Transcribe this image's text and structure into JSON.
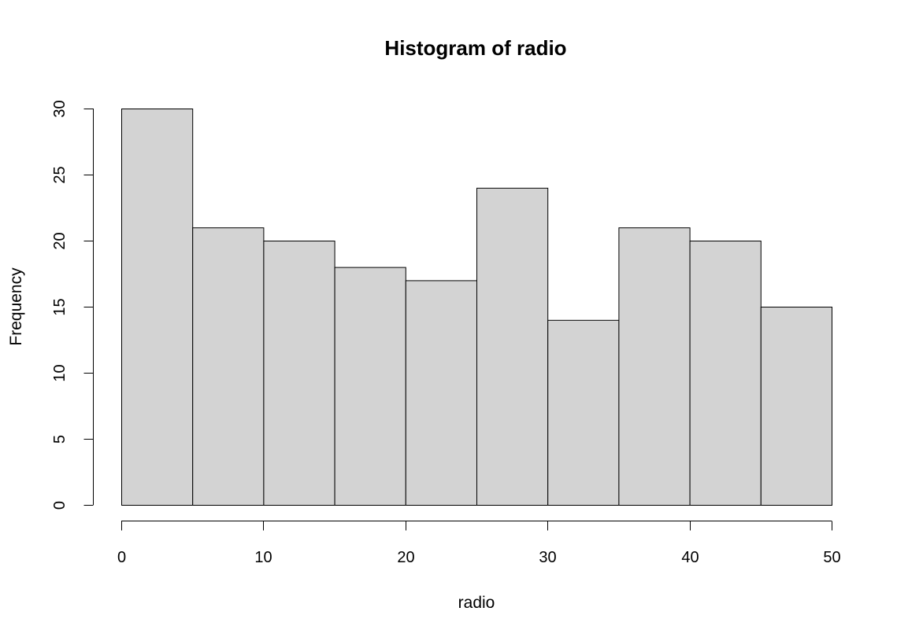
{
  "chart_data": {
    "type": "bar",
    "title": "Histogram of radio",
    "xlabel": "radio",
    "ylabel": "Frequency",
    "bins": [
      {
        "from": 0,
        "to": 5,
        "count": 30
      },
      {
        "from": 5,
        "to": 10,
        "count": 21
      },
      {
        "from": 10,
        "to": 15,
        "count": 20
      },
      {
        "from": 15,
        "to": 20,
        "count": 18
      },
      {
        "from": 20,
        "to": 25,
        "count": 17
      },
      {
        "from": 25,
        "to": 30,
        "count": 24
      },
      {
        "from": 30,
        "to": 35,
        "count": 14
      },
      {
        "from": 35,
        "to": 40,
        "count": 21
      },
      {
        "from": 40,
        "to": 45,
        "count": 20
      },
      {
        "from": 45,
        "to": 50,
        "count": 15
      }
    ],
    "xlim": [
      0,
      50
    ],
    "ylim": [
      0,
      30
    ],
    "x_ticks": [
      "0",
      "10",
      "20",
      "30",
      "40",
      "50"
    ],
    "y_ticks": [
      "0",
      "5",
      "10",
      "15",
      "20",
      "25",
      "30"
    ],
    "grid": false,
    "bar_color": "#d3d3d3",
    "border_color": "#000000"
  }
}
